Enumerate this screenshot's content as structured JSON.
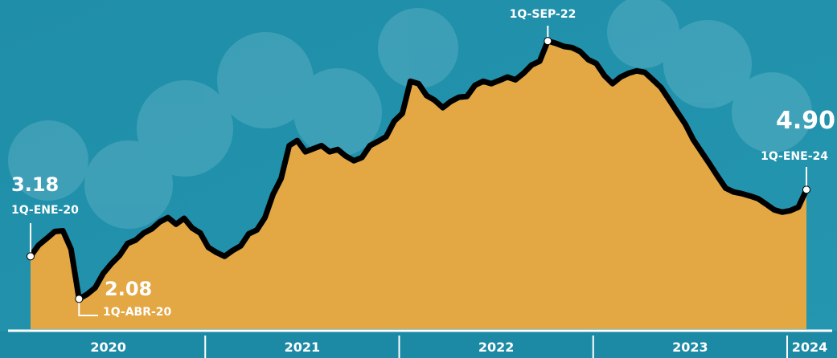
{
  "chart_data": {
    "type": "area",
    "values": [
      3.18,
      3.47,
      3.64,
      3.82,
      3.84,
      3.37,
      2.08,
      2.2,
      2.37,
      2.74,
      2.99,
      3.2,
      3.51,
      3.6,
      3.78,
      3.89,
      4.07,
      4.18,
      4.01,
      4.16,
      3.91,
      3.78,
      3.41,
      3.28,
      3.18,
      3.33,
      3.45,
      3.76,
      3.86,
      4.18,
      4.78,
      5.19,
      6.04,
      6.17,
      5.88,
      5.96,
      6.04,
      5.88,
      5.94,
      5.77,
      5.65,
      5.73,
      6.04,
      6.15,
      6.27,
      6.67,
      6.87,
      7.7,
      7.64,
      7.33,
      7.21,
      7.02,
      7.18,
      7.29,
      7.31,
      7.6,
      7.7,
      7.64,
      7.72,
      7.81,
      7.74,
      7.91,
      8.12,
      8.22,
      8.74,
      8.68,
      8.6,
      8.57,
      8.47,
      8.26,
      8.16,
      7.85,
      7.64,
      7.81,
      7.91,
      7.97,
      7.93,
      7.74,
      7.54,
      7.23,
      6.91,
      6.6,
      6.19,
      5.88,
      5.57,
      5.25,
      4.94,
      4.84,
      4.8,
      4.74,
      4.67,
      4.53,
      4.38,
      4.32,
      4.36,
      4.45,
      4.9
    ],
    "ylim": [
      1.3,
      9.8
    ],
    "years": [
      "2020",
      "2021",
      "2022",
      "2023",
      "2024"
    ],
    "line_color": "#000000",
    "area_color": "#f4a93a",
    "annotations": [
      {
        "label": "3.18",
        "date": "1Q-ENE-20"
      },
      {
        "label": "2.08",
        "date": "1Q-ABR-20"
      },
      {
        "date": "1Q-SEP-22"
      },
      {
        "label": "4.90",
        "date": "1Q-ENE-24"
      }
    ]
  }
}
